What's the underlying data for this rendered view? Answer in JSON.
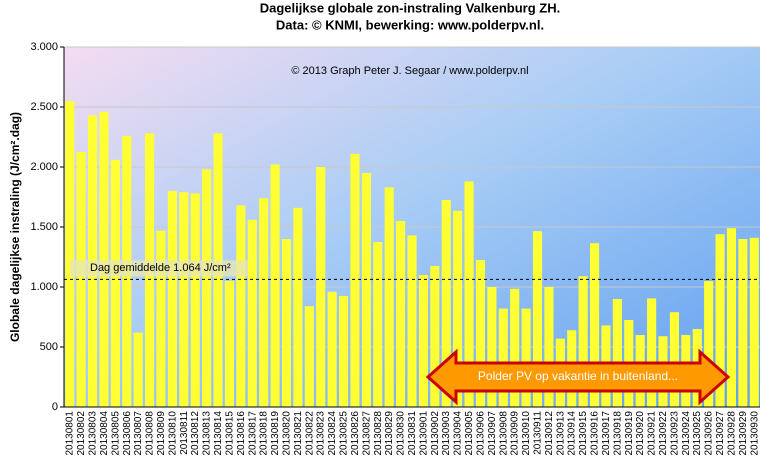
{
  "chart_data": {
    "type": "bar",
    "title": "Dagelijkse  globale  zon-instraling  Valkenburg  ZH.",
    "subtitle": "Data: © KNMI,  bewerking:  www.polderpv.nl.",
    "ylabel": "Globale dagelijkse instraling (J/cm².dag)",
    "copyright": "© 2013 Graph  Peter J. Segaar / www.polderpv.nl",
    "annotation": "Polder PV op vakantie in buitenland...",
    "average": {
      "value": 1064,
      "label": "Dag gemiddelde 1.064 J/cm²"
    },
    "color": "#ffff33",
    "grid": true,
    "ylim": [
      0,
      3000
    ],
    "yticks": [
      0,
      500,
      {
        "value": 1000,
        "label": "1.000"
      },
      {
        "value": 1500,
        "label": "1.500"
      },
      {
        "value": 2000,
        "label": "2.000"
      },
      {
        "value": 2500,
        "label": "2.500"
      },
      {
        "value": 3000,
        "label": "3.000"
      }
    ],
    "categories": [
      "20130801",
      "20130802",
      "20130803",
      "20130804",
      "20130805",
      "20130806",
      "20130807",
      "20130808",
      "20130809",
      "20130810",
      "20130811",
      "20130812",
      "20130813",
      "20130814",
      "20130815",
      "20130816",
      "20130817",
      "20130818",
      "20130819",
      "20130820",
      "20130821",
      "20130822",
      "20130823",
      "20130824",
      "20130825",
      "20130826",
      "20130827",
      "20130828",
      "20130829",
      "20130830",
      "20130831",
      "20130901",
      "20130902",
      "20130903",
      "20130904",
      "20130905",
      "20130906",
      "20130907",
      "20130908",
      "20130909",
      "20130910",
      "20130911",
      "20130912",
      "20130913",
      "20130914",
      "20130915",
      "20130916",
      "20130917",
      "20130918",
      "20130919",
      "20130920",
      "20130921",
      "20130922",
      "20130923",
      "20130924",
      "20130925",
      "20130926",
      "20130927",
      "20130928",
      "20130929",
      "20130930"
    ],
    "values": [
      2550,
      2125,
      2430,
      2460,
      2060,
      2260,
      620,
      2280,
      1470,
      1800,
      1790,
      1780,
      1980,
      2280,
      1050,
      1680,
      1560,
      1740,
      2020,
      1400,
      1660,
      840,
      2000,
      960,
      925,
      2110,
      1950,
      1375,
      1830,
      1550,
      1430,
      1100,
      1175,
      1725,
      1635,
      1880,
      1225,
      1000,
      820,
      985,
      820,
      1465,
      1000,
      570,
      640,
      1090,
      1365,
      680,
      900,
      725,
      600,
      905,
      590,
      790,
      600,
      650,
      1050,
      1440,
      1490,
      1400,
      1410
    ]
  }
}
